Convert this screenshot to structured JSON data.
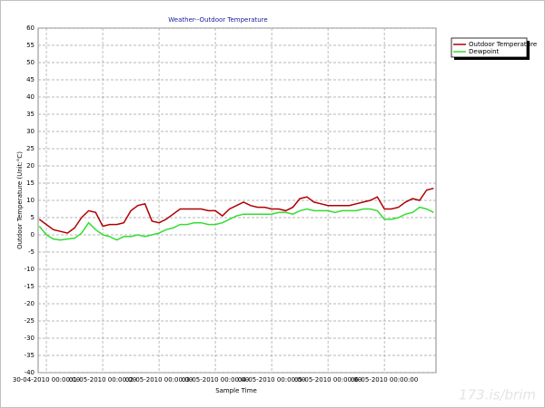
{
  "chart_data": {
    "type": "line",
    "title": "Weather--Outdoor Temperature",
    "x_label": "Sample Time",
    "y_label": "Outdoor Temperature (Unit:°C)",
    "watermark": "173.is/brim",
    "legend": "right",
    "grid": true,
    "ylim": [
      -40,
      60
    ],
    "yticks": [
      -40,
      -35,
      -30,
      -25,
      -20,
      -15,
      -10,
      -5,
      0,
      5,
      10,
      15,
      20,
      25,
      30,
      35,
      40,
      45,
      50,
      55,
      60
    ],
    "xlim": [
      "29-04-2010 20:30:00",
      "06-05-2010 22:00:00"
    ],
    "xticks": [
      "30-04-2010 00:00:00",
      "01-05-2010 00:00:00",
      "02-05-2010 00:00:00",
      "03-05-2010 00:00:00",
      "04-05-2010 00:00:00",
      "05-05-2010 00:00:00",
      "06-05-2010 00:00:00"
    ],
    "x": [
      "29-04-2010 21:00:00",
      "30-04-2010 00:00:00",
      "30-04-2010 03:00:00",
      "30-04-2010 06:00:00",
      "30-04-2010 09:00:00",
      "30-04-2010 12:00:00",
      "30-04-2010 15:00:00",
      "30-04-2010 18:00:00",
      "30-04-2010 21:00:00",
      "01-05-2010 00:00:00",
      "01-05-2010 03:00:00",
      "01-05-2010 06:00:00",
      "01-05-2010 09:00:00",
      "01-05-2010 12:00:00",
      "01-05-2010 15:00:00",
      "01-05-2010 18:00:00",
      "01-05-2010 21:00:00",
      "02-05-2010 00:00:00",
      "02-05-2010 03:00:00",
      "02-05-2010 06:00:00",
      "02-05-2010 09:00:00",
      "02-05-2010 12:00:00",
      "02-05-2010 15:00:00",
      "02-05-2010 18:00:00",
      "02-05-2010 21:00:00",
      "03-05-2010 00:00:00",
      "03-05-2010 03:00:00",
      "03-05-2010 06:00:00",
      "03-05-2010 09:00:00",
      "03-05-2010 12:00:00",
      "03-05-2010 15:00:00",
      "03-05-2010 18:00:00",
      "03-05-2010 21:00:00",
      "04-05-2010 00:00:00",
      "04-05-2010 03:00:00",
      "04-05-2010 06:00:00",
      "04-05-2010 09:00:00",
      "04-05-2010 12:00:00",
      "04-05-2010 15:00:00",
      "04-05-2010 18:00:00",
      "04-05-2010 21:00:00",
      "05-05-2010 00:00:00",
      "05-05-2010 03:00:00",
      "05-05-2010 06:00:00",
      "05-05-2010 09:00:00",
      "05-05-2010 12:00:00",
      "05-05-2010 15:00:00",
      "05-05-2010 18:00:00",
      "05-05-2010 21:00:00",
      "06-05-2010 00:00:00",
      "06-05-2010 03:00:00",
      "06-05-2010 06:00:00",
      "06-05-2010 09:00:00",
      "06-05-2010 12:00:00",
      "06-05-2010 15:00:00",
      "06-05-2010 18:00:00",
      "06-05-2010 21:00:00"
    ],
    "series": [
      {
        "name": "Outdoor Temperature",
        "color": "#b00000",
        "values": [
          4.5,
          3,
          1.5,
          1,
          0.5,
          2,
          5,
          7,
          6.5,
          2.5,
          3,
          3,
          3.5,
          7,
          8.5,
          9,
          4,
          3.5,
          4.5,
          6,
          7.5,
          7.5,
          7.5,
          7.5,
          7,
          7,
          5.5,
          7.5,
          8.5,
          9.5,
          8.5,
          8,
          8,
          7.5,
          7.5,
          7,
          8,
          10.5,
          11,
          9.5,
          9,
          8.5,
          8.5,
          8.5,
          8.5,
          9,
          9.5,
          10,
          11,
          7.5,
          7.5,
          8,
          9.5,
          10.5,
          10,
          13,
          13.5
        ]
      },
      {
        "name": "Dewpoint",
        "color": "#33dd33",
        "values": [
          2.5,
          0,
          -1.2,
          -1.5,
          -1.2,
          -1,
          0.5,
          3.5,
          1.5,
          0,
          -0.5,
          -1.5,
          -0.5,
          -0.5,
          0,
          -0.5,
          0,
          0.5,
          1.5,
          2,
          3,
          3,
          3.5,
          3.5,
          3,
          3,
          3.5,
          4.5,
          5.5,
          6,
          6,
          6,
          6,
          6,
          6.5,
          6.5,
          6,
          7,
          7.5,
          7,
          7,
          7,
          6.5,
          7,
          7,
          7,
          7.5,
          7.5,
          7,
          4.5,
          4.5,
          5,
          6,
          6.5,
          8,
          7.5,
          6.5
        ]
      }
    ]
  }
}
